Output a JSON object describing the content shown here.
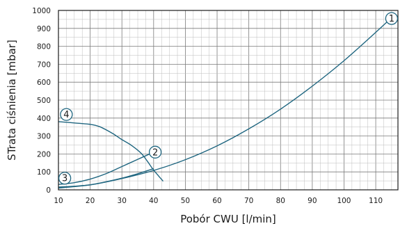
{
  "chart_data": {
    "type": "line",
    "xlabel": "Pobór CWU [l/min]",
    "ylabel": "STrata ciśnienia [mbar]",
    "xlim": [
      10,
      117
    ],
    "ylim": [
      0,
      1000
    ],
    "x_ticks": [
      10,
      20,
      30,
      40,
      50,
      60,
      70,
      80,
      90,
      100,
      110
    ],
    "y_ticks": [
      0,
      100,
      200,
      300,
      400,
      500,
      600,
      700,
      800,
      900,
      1000
    ],
    "grid": true,
    "line_color": "#1f6680",
    "series": [
      {
        "name": "1",
        "x": [
          10,
          20,
          30,
          40,
          50,
          60,
          70,
          80,
          90,
          100,
          110,
          115
        ],
        "y": [
          15,
          28,
          63,
          108,
          168,
          245,
          340,
          450,
          578,
          720,
          878,
          960
        ]
      },
      {
        "name": "2",
        "x": [
          10,
          15,
          20,
          25,
          30,
          35,
          40
        ],
        "y": [
          30,
          40,
          60,
          90,
          130,
          170,
          210
        ]
      },
      {
        "name": "3",
        "x": [
          10,
          15,
          20,
          25,
          30,
          35,
          40
        ],
        "y": [
          10,
          18,
          28,
          45,
          65,
          90,
          118
        ]
      },
      {
        "name": "4",
        "x": [
          10,
          15,
          20,
          23,
          27,
          30,
          33,
          36,
          38,
          40,
          43
        ],
        "y": [
          380,
          373,
          365,
          352,
          315,
          280,
          248,
          205,
          160,
          110,
          48
        ]
      }
    ],
    "markers": [
      {
        "label": "1",
        "x": 115,
        "y": 955
      },
      {
        "label": "2",
        "x": 40.5,
        "y": 210
      },
      {
        "label": "3",
        "x": 12,
        "y": 65
      },
      {
        "label": "4",
        "x": 12.5,
        "y": 420
      }
    ]
  }
}
